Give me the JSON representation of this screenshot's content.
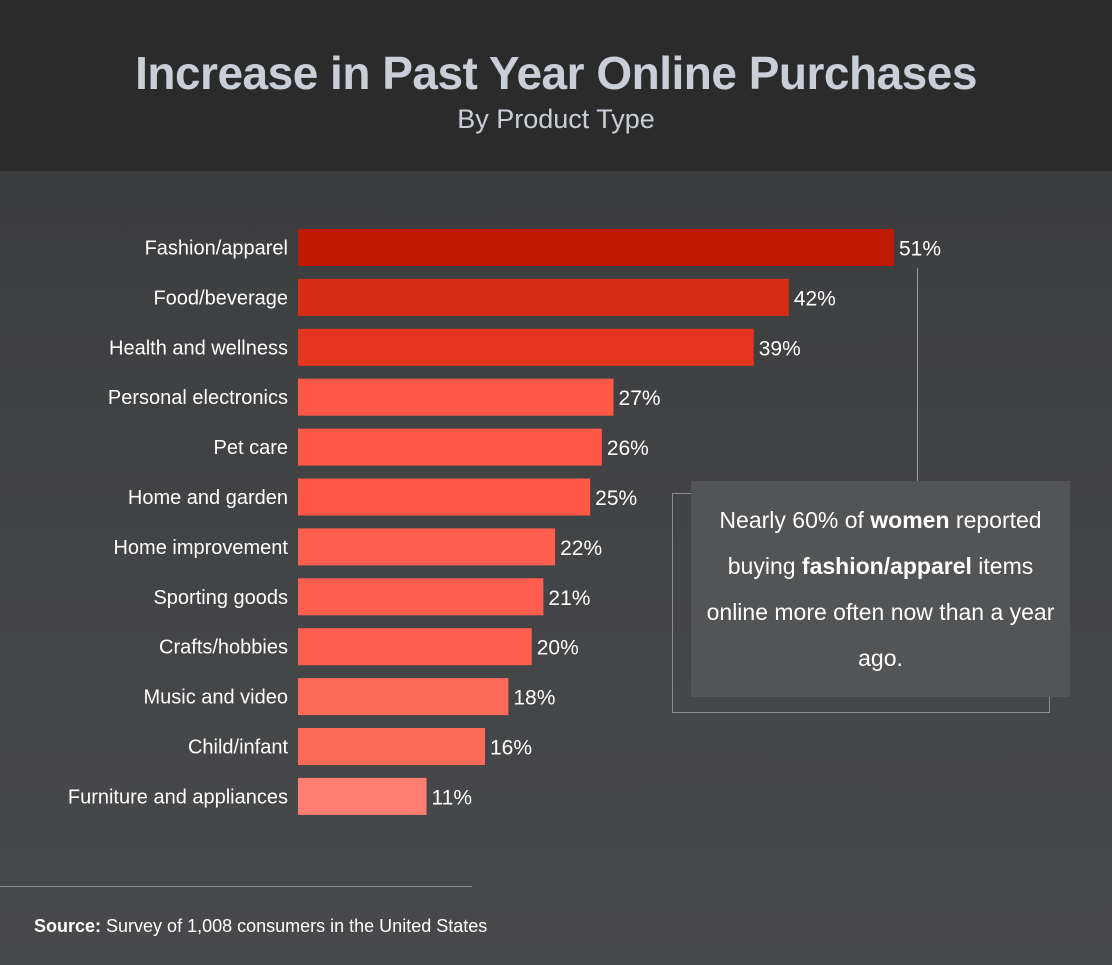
{
  "title": "Increase in Past Year Online Purchases",
  "subtitle": "By Product Type",
  "chart_data": {
    "type": "bar",
    "orientation": "horizontal",
    "title": "Increase in Past Year Online Purchases",
    "subtitle": "By Product Type",
    "categories": [
      "Fashion/apparel",
      "Food/beverage",
      "Health and wellness",
      "Personal electronics",
      "Pet care",
      "Home and garden",
      "Home improvement",
      "Sporting goods",
      "Crafts/hobbies",
      "Music and video",
      "Child/infant",
      "Furniture and appliances"
    ],
    "values": [
      51,
      42,
      39,
      27,
      26,
      25,
      22,
      21,
      20,
      18,
      16,
      11
    ],
    "value_labels": [
      "51%",
      "42%",
      "39%",
      "27%",
      "26%",
      "25%",
      "22%",
      "21%",
      "20%",
      "18%",
      "16%",
      "11%"
    ],
    "bar_colors": [
      "#be1a00",
      "#d82d15",
      "#e5351e",
      "#fe5746",
      "#fe5746",
      "#fe5746",
      "#fe5e4e",
      "#fe5e4e",
      "#fe5e4e",
      "#fe6a5a",
      "#fe6a5a",
      "#fe7e72"
    ],
    "xlim": [
      0,
      51
    ],
    "grid": false,
    "legend": "none"
  },
  "annotation": {
    "pre": "Nearly 60% of ",
    "bold1": "women",
    "mid": " reported buying ",
    "bold2": "fashion/apparel",
    "post": " items online more often now than a year ago."
  },
  "source": {
    "label": "Source:",
    "text": " Survey of 1,008 consumers in the United States"
  }
}
